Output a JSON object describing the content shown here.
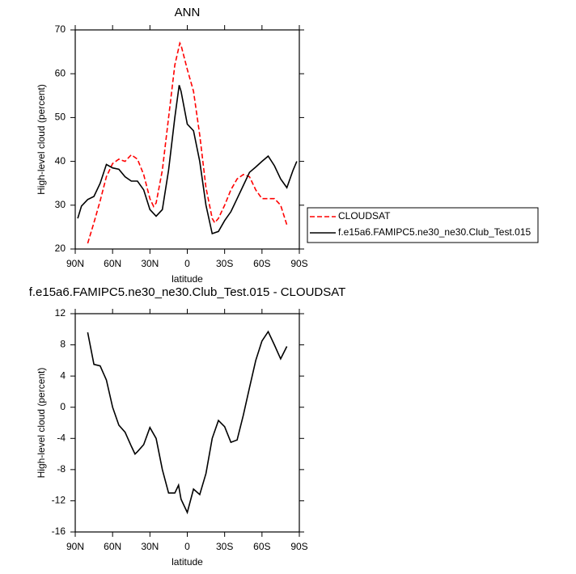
{
  "chart_data": [
    {
      "type": "line",
      "title": "ANN",
      "xlabel": "latitude",
      "ylabel": "High-level cloud (percent)",
      "xlim": [
        90,
        -90
      ],
      "ylim": [
        20,
        70
      ],
      "xticks": [
        {
          "value": 90,
          "label": "90N"
        },
        {
          "value": 60,
          "label": "60N"
        },
        {
          "value": 30,
          "label": "30N"
        },
        0,
        {
          "value": -30,
          "label": "30S"
        },
        {
          "value": -60,
          "label": "60S"
        },
        {
          "value": -90,
          "label": "90S"
        }
      ],
      "yticks": [
        20,
        30,
        40,
        50,
        60,
        70
      ],
      "legend": "right",
      "series": [
        {
          "name": "CLOUDSAT",
          "color": "#ff0000",
          "dashed": true,
          "x": [
            80,
            75,
            70,
            65,
            60,
            55,
            50,
            45,
            40,
            35,
            30,
            27,
            25,
            20,
            15,
            10,
            6,
            5,
            0,
            -5,
            -10,
            -15,
            -20,
            -22,
            -25,
            -30,
            -35,
            -40,
            -45,
            -50,
            -55,
            -60,
            -65,
            -70,
            -75,
            -80
          ],
          "values": [
            21.3,
            26,
            31,
            36.5,
            39.5,
            40.5,
            40,
            41.5,
            40.5,
            37,
            31.5,
            29.7,
            30.5,
            38,
            50,
            62,
            67,
            66.5,
            61,
            56,
            46,
            34,
            27,
            26,
            27,
            30,
            33.5,
            36,
            37,
            36.5,
            33.5,
            31.5,
            31.5,
            31.5,
            30,
            25.5
          ]
        },
        {
          "name": "f.e15a6.FAMIPC5.ne30_ne30.Club_Test.015",
          "color": "#000000",
          "dashed": false,
          "x": [
            88,
            85,
            80,
            75,
            70,
            65,
            60,
            55,
            50,
            45,
            40,
            35,
            30,
            25,
            20,
            15,
            10,
            6.5,
            5,
            0,
            -5,
            -10,
            -15,
            -20,
            -25,
            -30,
            -35,
            -40,
            -45,
            -50,
            -55,
            -60,
            -65,
            -70,
            -75,
            -80,
            -85,
            -88
          ],
          "values": [
            27,
            29.8,
            31.3,
            32,
            35,
            39.3,
            38.5,
            38.2,
            36.5,
            35.5,
            35.5,
            33.5,
            29,
            27.5,
            29,
            38,
            50,
            57.4,
            56,
            48.5,
            47,
            40,
            30,
            23.5,
            24,
            26.5,
            28.5,
            31.5,
            34.5,
            37.5,
            38.7,
            40,
            41.2,
            39,
            36,
            34,
            38,
            40
          ]
        }
      ]
    },
    {
      "type": "line",
      "title": "f.e15a6.FAMIPC5.ne30_ne30.Club_Test.015 - CLOUDSAT",
      "xlabel": "latitude",
      "ylabel": "High-level cloud (percent)",
      "xlim": [
        90,
        -90
      ],
      "ylim": [
        -16,
        12
      ],
      "xticks": [
        {
          "value": 90,
          "label": "90N"
        },
        {
          "value": 60,
          "label": "60N"
        },
        {
          "value": 30,
          "label": "30N"
        },
        0,
        {
          "value": -30,
          "label": "30S"
        },
        {
          "value": -60,
          "label": "60S"
        },
        {
          "value": -90,
          "label": "90S"
        }
      ],
      "yticks": [
        -16,
        -12,
        -8,
        -4,
        0,
        4,
        8,
        12
      ],
      "series": [
        {
          "color": "#000000",
          "dashed": false,
          "x": [
            80,
            75,
            70,
            65,
            60,
            55,
            50,
            45,
            42,
            40,
            35,
            30,
            25,
            20,
            15,
            10,
            7,
            5,
            0,
            -5,
            -10,
            -15,
            -20,
            -25,
            -30,
            -35,
            -40,
            -45,
            -50,
            -55,
            -60,
            -65,
            -70,
            -75,
            -80
          ],
          "values": [
            9.6,
            5.5,
            5.3,
            3.5,
            0,
            -2.3,
            -3.2,
            -5,
            -6,
            -5.7,
            -4.8,
            -2.6,
            -4,
            -8,
            -11,
            -11,
            -10,
            -11.8,
            -13.5,
            -10.5,
            -11.2,
            -8.5,
            -4,
            -1.7,
            -2.5,
            -4.5,
            -4.2,
            -1,
            2.5,
            6,
            8.5,
            9.7,
            8,
            6.2,
            7.8
          ]
        }
      ]
    }
  ]
}
